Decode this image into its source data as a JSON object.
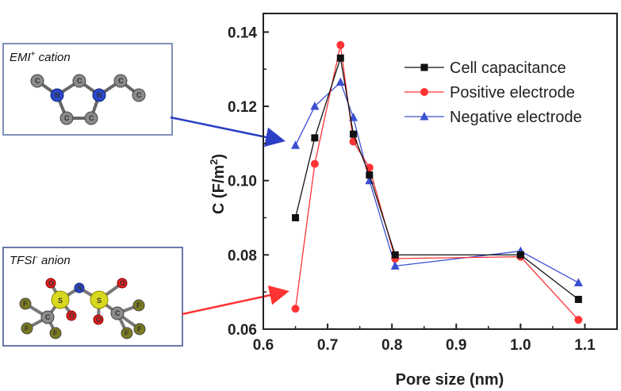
{
  "chart_data": {
    "type": "line",
    "xlabel": "Pore size (nm)",
    "ylabel_main": "C (F/m",
    "ylabel_sup": "2",
    "ylabel_close": ")",
    "xlim": [
      0.6,
      1.15
    ],
    "ylim": [
      0.06,
      0.145
    ],
    "xticks": [
      "0.6",
      "0.7",
      "0.8",
      "0.9",
      "1.0",
      "1.1"
    ],
    "yticks": [
      "0.06",
      "0.08",
      "0.10",
      "0.12",
      "0.14"
    ],
    "legend_position": "top-right",
    "series": [
      {
        "name": "Cell capacitance",
        "color": "#111111",
        "marker": "square",
        "x": [
          0.65,
          0.68,
          0.72,
          0.74,
          0.765,
          0.805,
          1.0,
          1.09
        ],
        "y": [
          0.09,
          0.1115,
          0.133,
          0.1125,
          0.1015,
          0.08,
          0.08,
          0.068
        ]
      },
      {
        "name": "Positive electrode",
        "color": "#ff3333",
        "marker": "circle",
        "x": [
          0.65,
          0.68,
          0.72,
          0.74,
          0.765,
          0.805,
          1.0,
          1.09
        ],
        "y": [
          0.0655,
          0.1045,
          0.1365,
          0.1105,
          0.1035,
          0.079,
          0.0795,
          0.0625
        ]
      },
      {
        "name": "Negative electrode",
        "color": "#3b4fd1",
        "marker": "triangle",
        "x": [
          0.65,
          0.68,
          0.72,
          0.74,
          0.765,
          0.805,
          1.0,
          1.09
        ],
        "y": [
          0.1095,
          0.12,
          0.1265,
          0.117,
          0.1,
          0.077,
          0.081,
          0.0725
        ]
      }
    ]
  },
  "insets": {
    "cation": {
      "title": "EMI",
      "title_sup": "+",
      "title_rest": " cation",
      "arrow_color": "#2b3fc4",
      "atom_c": "C",
      "atom_n": "N"
    },
    "anion": {
      "title": "TFSI",
      "title_sup": "-",
      "title_rest": " anion",
      "arrow_color": "#ff3333",
      "atom_s": "S",
      "atom_o": "O",
      "atom_n": "N",
      "atom_f": "F",
      "atom_c": "C"
    }
  }
}
